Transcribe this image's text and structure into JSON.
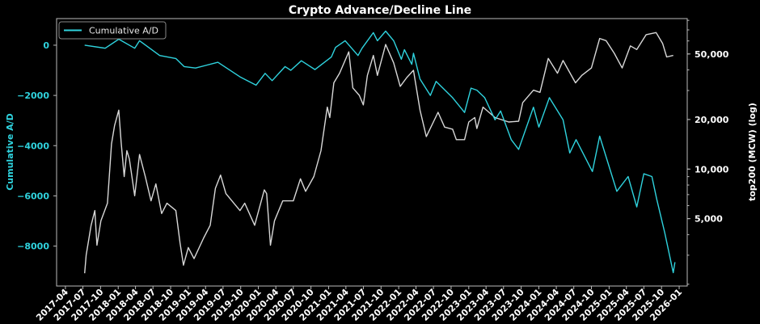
{
  "chart_data": {
    "type": "line",
    "title": "Crypto Advance/Decline Line",
    "background": "#000000",
    "grid": false,
    "legend": {
      "placement": "top-left",
      "entries": [
        "Cumulative A/D"
      ]
    },
    "xaxis": {
      "type": "date",
      "range": [
        "2017-02-14",
        "2026-02-12"
      ],
      "ticks": [
        "2017-04",
        "2017-07",
        "2017-10",
        "2018-01",
        "2018-04",
        "2018-07",
        "2018-10",
        "2019-01",
        "2019-04",
        "2019-07",
        "2019-10",
        "2020-01",
        "2020-04",
        "2020-07",
        "2020-10",
        "2021-01",
        "2021-04",
        "2021-07",
        "2021-10",
        "2022-01",
        "2022-04",
        "2022-07",
        "2022-10",
        "2023-01",
        "2023-04",
        "2023-07",
        "2023-10",
        "2024-01",
        "2024-04",
        "2024-07",
        "2024-10",
        "2025-01",
        "2025-04",
        "2025-07",
        "2025-10",
        "2026-01"
      ]
    },
    "yaxis_left": {
      "label": "Cumulative A/D",
      "range": [
        -9590,
        1060
      ],
      "ticks": [
        0,
        -2000,
        -4000,
        -6000,
        -8000
      ],
      "tick_labels": [
        "0",
        "−2000",
        "−4000",
        "−6000",
        "−8000"
      ],
      "color": "#2fd3de"
    },
    "yaxis_right": {
      "label": "top200 (MCW) (log)",
      "scale": "log",
      "range": [
        1950,
        82000
      ],
      "ticks": [
        5000,
        10000,
        20000,
        50000
      ],
      "tick_labels": [
        "5,000",
        "10,000",
        "20,000",
        "50,000"
      ],
      "color": "#ffffff"
    },
    "series": [
      {
        "name": "Cumulative A/D",
        "axis": "left",
        "color": "#2fd3de",
        "points": [
          [
            "2017-07-10",
            0
          ],
          [
            "2017-10-25",
            -120
          ],
          [
            "2018-01-04",
            240
          ],
          [
            "2018-03-28",
            -120
          ],
          [
            "2018-04-22",
            180
          ],
          [
            "2018-08-05",
            -410
          ],
          [
            "2018-10-28",
            -530
          ],
          [
            "2018-12-10",
            -850
          ],
          [
            "2019-02-08",
            -910
          ],
          [
            "2019-06-04",
            -680
          ],
          [
            "2019-09-27",
            -1260
          ],
          [
            "2019-12-20",
            -1590
          ],
          [
            "2020-02-05",
            -1120
          ],
          [
            "2020-03-13",
            -1410
          ],
          [
            "2020-05-19",
            -850
          ],
          [
            "2020-06-18",
            -1000
          ],
          [
            "2020-08-12",
            -620
          ],
          [
            "2020-10-22",
            -970
          ],
          [
            "2021-01-15",
            -470
          ],
          [
            "2021-02-06",
            -90
          ],
          [
            "2021-03-28",
            180
          ],
          [
            "2021-06-03",
            -410
          ],
          [
            "2021-06-24",
            -120
          ],
          [
            "2021-08-22",
            500
          ],
          [
            "2021-09-12",
            180
          ],
          [
            "2021-10-25",
            560
          ],
          [
            "2021-12-06",
            180
          ],
          [
            "2022-01-15",
            -560
          ],
          [
            "2022-01-31",
            -180
          ],
          [
            "2022-03-10",
            -760
          ],
          [
            "2022-03-19",
            -320
          ],
          [
            "2022-04-22",
            -1350
          ],
          [
            "2022-06-15",
            -2000
          ],
          [
            "2022-07-15",
            -1440
          ],
          [
            "2022-10-09",
            -2090
          ],
          [
            "2022-12-10",
            -2680
          ],
          [
            "2023-01-13",
            -1710
          ],
          [
            "2023-02-12",
            -1790
          ],
          [
            "2023-03-25",
            -2090
          ],
          [
            "2023-05-18",
            -2970
          ],
          [
            "2023-06-16",
            -2620
          ],
          [
            "2023-08-10",
            -3760
          ],
          [
            "2023-09-18",
            -4150
          ],
          [
            "2023-12-04",
            -2470
          ],
          [
            "2024-01-01",
            -3260
          ],
          [
            "2024-02-25",
            -2090
          ],
          [
            "2024-05-06",
            -2970
          ],
          [
            "2024-06-10",
            -4290
          ],
          [
            "2024-07-13",
            -3760
          ],
          [
            "2024-10-06",
            -5030
          ],
          [
            "2024-11-13",
            -3620
          ],
          [
            "2025-02-10",
            -5820
          ],
          [
            "2025-04-10",
            -5230
          ],
          [
            "2025-05-25",
            -6440
          ],
          [
            "2025-07-01",
            -5120
          ],
          [
            "2025-08-12",
            -5230
          ],
          [
            "2025-09-06",
            -6120
          ],
          [
            "2025-10-18",
            -7470
          ],
          [
            "2025-12-01",
            -9060
          ],
          [
            "2025-12-10",
            -8640
          ]
        ]
      },
      {
        "axis": "right",
        "color": "#d8d8d8",
        "points": [
          [
            "2017-07-10",
            2330
          ],
          [
            "2017-07-18",
            3010
          ],
          [
            "2017-08-13",
            4560
          ],
          [
            "2017-09-01",
            5600
          ],
          [
            "2017-09-12",
            3450
          ],
          [
            "2017-10-03",
            4850
          ],
          [
            "2017-11-06",
            6210
          ],
          [
            "2017-11-27",
            14190
          ],
          [
            "2017-12-13",
            18370
          ],
          [
            "2018-01-04",
            22800
          ],
          [
            "2018-01-16",
            14620
          ],
          [
            "2018-02-01",
            9010
          ],
          [
            "2018-02-15",
            12940
          ],
          [
            "2018-02-28",
            11530
          ],
          [
            "2018-03-28",
            6890
          ],
          [
            "2018-04-22",
            12270
          ],
          [
            "2018-05-22",
            9010
          ],
          [
            "2018-06-21",
            6410
          ],
          [
            "2018-07-16",
            8130
          ],
          [
            "2018-08-15",
            5370
          ],
          [
            "2018-09-12",
            6210
          ],
          [
            "2018-10-28",
            5600
          ],
          [
            "2018-11-19",
            3560
          ],
          [
            "2018-12-07",
            2610
          ],
          [
            "2019-01-01",
            3340
          ],
          [
            "2019-01-31",
            2860
          ],
          [
            "2019-03-22",
            3820
          ],
          [
            "2019-04-25",
            4560
          ],
          [
            "2019-05-22",
            7640
          ],
          [
            "2019-06-18",
            9200
          ],
          [
            "2019-07-16",
            7100
          ],
          [
            "2019-09-27",
            5600
          ],
          [
            "2019-10-22",
            6210
          ],
          [
            "2019-12-13",
            4560
          ],
          [
            "2020-02-01",
            7480
          ],
          [
            "2020-02-13",
            7100
          ],
          [
            "2020-03-04",
            3450
          ],
          [
            "2020-03-25",
            4850
          ],
          [
            "2020-05-07",
            6410
          ],
          [
            "2020-07-01",
            6410
          ],
          [
            "2020-08-07",
            8730
          ],
          [
            "2020-09-03",
            7330
          ],
          [
            "2020-10-16",
            9010
          ],
          [
            "2020-11-22",
            12940
          ],
          [
            "2020-12-25",
            23770
          ],
          [
            "2021-01-07",
            20560
          ],
          [
            "2021-01-28",
            33420
          ],
          [
            "2021-02-27",
            38190
          ],
          [
            "2021-04-16",
            51520
          ],
          [
            "2021-05-07",
            31120
          ],
          [
            "2021-06-10",
            28050
          ],
          [
            "2021-07-01",
            24550
          ],
          [
            "2021-07-22",
            37070
          ],
          [
            "2021-08-22",
            48980
          ],
          [
            "2021-09-12",
            37070
          ],
          [
            "2021-10-25",
            57150
          ],
          [
            "2021-12-06",
            44160
          ],
          [
            "2022-01-09",
            31770
          ],
          [
            "2022-02-12",
            35970
          ],
          [
            "2022-03-19",
            39810
          ],
          [
            "2022-04-22",
            22800
          ],
          [
            "2022-05-25",
            15740
          ],
          [
            "2022-07-25",
            22130
          ],
          [
            "2022-08-28",
            17990
          ],
          [
            "2022-10-09",
            17460
          ],
          [
            "2022-10-28",
            15100
          ],
          [
            "2022-12-10",
            15100
          ],
          [
            "2023-01-01",
            19320
          ],
          [
            "2023-02-01",
            20560
          ],
          [
            "2023-02-12",
            17620
          ],
          [
            "2023-03-16",
            23770
          ],
          [
            "2023-05-18",
            20560
          ],
          [
            "2023-07-28",
            19320
          ],
          [
            "2023-09-18",
            19540
          ],
          [
            "2023-10-09",
            25290
          ],
          [
            "2023-12-04",
            30130
          ],
          [
            "2024-01-07",
            29240
          ],
          [
            "2024-02-19",
            46990
          ],
          [
            "2024-04-07",
            38190
          ],
          [
            "2024-05-06",
            45600
          ],
          [
            "2024-07-10",
            33420
          ],
          [
            "2024-08-12",
            37070
          ],
          [
            "2024-10-01",
            41110
          ],
          [
            "2024-11-13",
            62100
          ],
          [
            "2024-12-16",
            60260
          ],
          [
            "2025-01-28",
            50470
          ],
          [
            "2025-03-10",
            41110
          ],
          [
            "2025-04-22",
            55980
          ],
          [
            "2025-05-25",
            53210
          ],
          [
            "2025-07-13",
            65460
          ],
          [
            "2025-09-03",
            67450
          ],
          [
            "2025-10-07",
            57810
          ],
          [
            "2025-10-28",
            47970
          ],
          [
            "2025-12-01",
            48980
          ]
        ]
      }
    ]
  }
}
